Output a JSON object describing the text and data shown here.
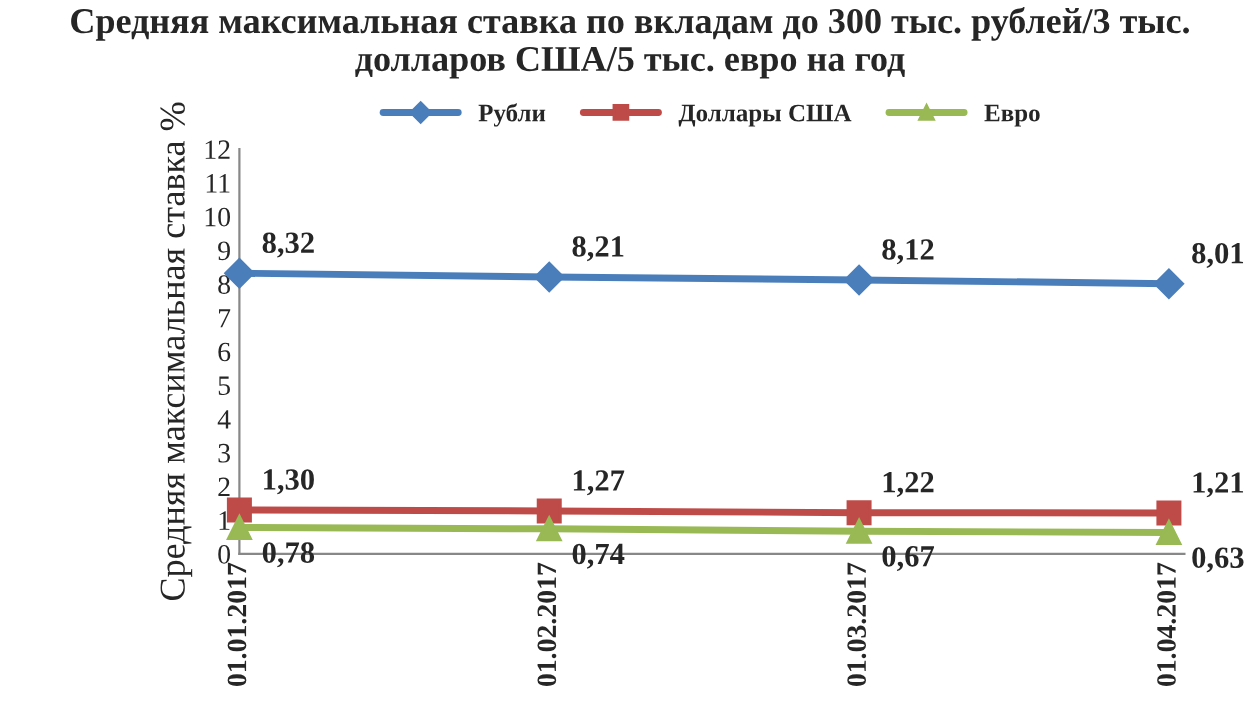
{
  "chart_data": {
    "type": "line",
    "title": "Средняя максимальная ставка по вкладам до 300 тыс. рублей/3 тыс. долларов США/5 тыс. евро на год",
    "ylabel": "Средняя максимальная ставка %",
    "categories": [
      "01.01.2017",
      "01.02.2017",
      "01.03.2017",
      "01.04.2017"
    ],
    "series": [
      {
        "name": "Рубли",
        "color": "#4a7ebb",
        "marker": "diamond",
        "values": [
          8.32,
          8.21,
          8.12,
          8.01
        ],
        "value_labels": [
          "8,32",
          "8,21",
          "8,12",
          "8,01"
        ]
      },
      {
        "name": "Доллары США",
        "color": "#be4b48",
        "marker": "square",
        "values": [
          1.3,
          1.27,
          1.22,
          1.21
        ],
        "value_labels": [
          "1,30",
          "1,27",
          "1,22",
          "1,21"
        ]
      },
      {
        "name": "Евро",
        "color": "#98b954",
        "marker": "triangle",
        "values": [
          0.78,
          0.74,
          0.67,
          0.63
        ],
        "value_labels": [
          "0,78",
          "0,74",
          "0,67",
          "0,63"
        ]
      }
    ],
    "ylim": [
      0,
      12
    ],
    "yticks": [
      0,
      1,
      2,
      3,
      4,
      5,
      6,
      7,
      8,
      9,
      10,
      11,
      12
    ],
    "grid": false,
    "legend": "top"
  }
}
